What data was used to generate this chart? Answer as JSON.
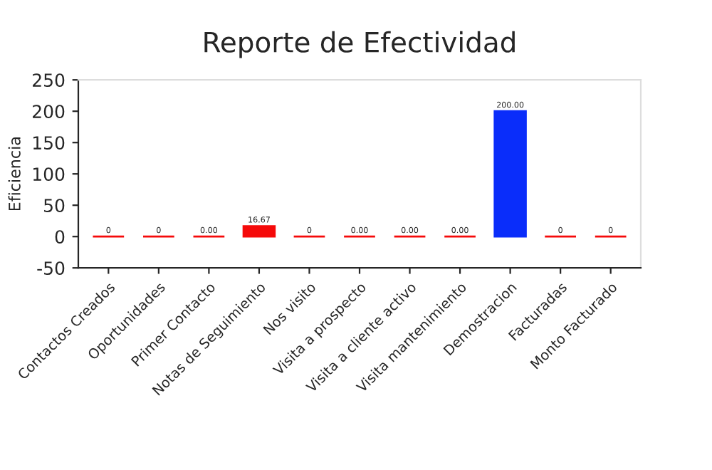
{
  "chart_data": {
    "type": "bar",
    "title": "Reporte de Efectividad",
    "ylabel": "Eficiencia",
    "categories": [
      "Contactos Creados",
      "Oportunidades",
      "Primer Contacto",
      "Notas de Seguimiento",
      "Nos visito",
      "Visita a prospecto",
      "Visita a cliente activo",
      "Visita mantenimiento",
      "Demostracion",
      "Facturadas",
      "Monto Facturado"
    ],
    "values": [
      0,
      0,
      0,
      16.67,
      0,
      0,
      0,
      0,
      200,
      0,
      0
    ],
    "value_labels": [
      "0",
      "0",
      "0.00",
      "16.67",
      "0",
      "0.00",
      "0.00",
      "0.00",
      "200.00",
      "0",
      "0"
    ],
    "colors": [
      "#f50a0a",
      "#f50a0a",
      "#f50a0a",
      "#f50a0a",
      "#f50a0a",
      "#f50a0a",
      "#f50a0a",
      "#f50a0a",
      "#0a2dfa",
      "#f50a0a",
      "#f50a0a"
    ],
    "ylim": [
      -50,
      250
    ],
    "yticks": [
      -50,
      0,
      50,
      100,
      150,
      200,
      250
    ],
    "grid": false,
    "legend": false
  }
}
